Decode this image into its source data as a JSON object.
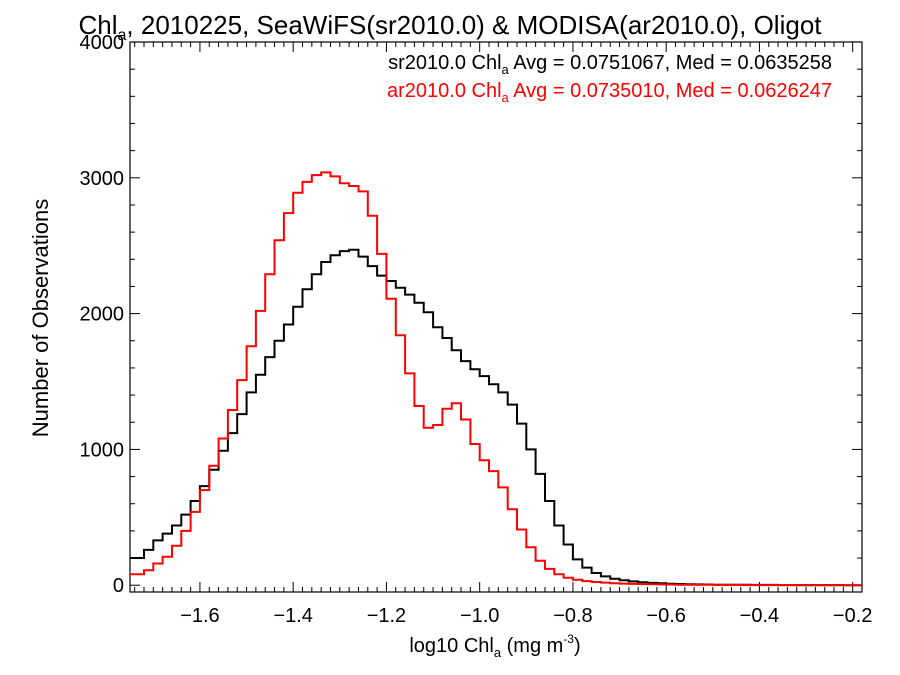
{
  "chart_data": {
    "type": "line",
    "title": {
      "pre": "Chl",
      "sub": "a",
      "post": ", 2010225, SeaWiFS(sr2010.0) & MODISA(ar2010.0), Oligot"
    },
    "xlabel": {
      "pre": "log10 Chl",
      "sub": "a",
      "mid": " (mg m",
      "sup": "-3",
      "post": ")"
    },
    "ylabel": "Number of Observations",
    "xlim": [
      -1.75,
      -0.18
    ],
    "ylim": [
      -50,
      4000
    ],
    "x_ticks": [
      -1.6,
      -1.4,
      -1.2,
      -1.0,
      -0.8,
      -0.6,
      -0.4,
      -0.2
    ],
    "x_tick_labels": [
      "−1.6",
      "−1.4",
      "−1.2",
      "−1.0",
      "−0.8",
      "−0.6",
      "−0.4",
      "−0.2"
    ],
    "y_ticks": [
      0,
      1000,
      2000,
      3000,
      4000
    ],
    "y_tick_labels": [
      "0",
      "1000",
      "2000",
      "3000",
      "4000"
    ],
    "grid": false,
    "legend_placement": "top-right",
    "series": [
      {
        "name": "sr2010.0",
        "color": "#000000",
        "label": {
          "pre": "sr2010.0 Chl",
          "sub": "a",
          "post": " Avg = 0.0751067, Med = 0.0635258"
        },
        "step": true,
        "x": [
          -1.75,
          -1.72,
          -1.7,
          -1.68,
          -1.66,
          -1.64,
          -1.62,
          -1.6,
          -1.58,
          -1.56,
          -1.54,
          -1.52,
          -1.5,
          -1.48,
          -1.46,
          -1.44,
          -1.42,
          -1.4,
          -1.38,
          -1.36,
          -1.34,
          -1.32,
          -1.3,
          -1.28,
          -1.26,
          -1.24,
          -1.22,
          -1.2,
          -1.18,
          -1.16,
          -1.14,
          -1.12,
          -1.1,
          -1.08,
          -1.06,
          -1.04,
          -1.02,
          -1.0,
          -0.98,
          -0.96,
          -0.94,
          -0.92,
          -0.9,
          -0.88,
          -0.86,
          -0.84,
          -0.82,
          -0.8,
          -0.78,
          -0.76,
          -0.74,
          -0.72,
          -0.7,
          -0.68,
          -0.66,
          -0.64,
          -0.62,
          -0.6,
          -0.58,
          -0.56,
          -0.54,
          -0.52,
          -0.5,
          -0.48,
          -0.46,
          -0.44,
          -0.42,
          -0.4,
          -0.38,
          -0.36,
          -0.34,
          -0.32,
          -0.3,
          -0.28,
          -0.26,
          -0.24,
          -0.22,
          -0.2,
          -0.18
        ],
        "y": [
          200,
          260,
          330,
          380,
          440,
          520,
          620,
          730,
          850,
          990,
          1120,
          1260,
          1420,
          1550,
          1680,
          1800,
          1920,
          2050,
          2180,
          2290,
          2380,
          2430,
          2460,
          2470,
          2420,
          2350,
          2280,
          2240,
          2190,
          2140,
          2080,
          2010,
          1900,
          1820,
          1730,
          1650,
          1590,
          1540,
          1480,
          1420,
          1330,
          1190,
          1000,
          820,
          620,
          440,
          300,
          190,
          130,
          90,
          65,
          48,
          36,
          28,
          22,
          17,
          14,
          11,
          9,
          7,
          6,
          5,
          4,
          4,
          3,
          3,
          2,
          2,
          2,
          1,
          1,
          1,
          1,
          1,
          1,
          1,
          0,
          0,
          0
        ]
      },
      {
        "name": "ar2010.0",
        "color": "#ff0000",
        "label": {
          "pre": "ar2010.0 Chl",
          "sub": "a",
          "post": " Avg = 0.0735010, Med = 0.0626247"
        },
        "step": true,
        "x": [
          -1.75,
          -1.72,
          -1.7,
          -1.68,
          -1.66,
          -1.64,
          -1.62,
          -1.6,
          -1.58,
          -1.56,
          -1.54,
          -1.52,
          -1.5,
          -1.48,
          -1.46,
          -1.44,
          -1.42,
          -1.4,
          -1.38,
          -1.36,
          -1.34,
          -1.32,
          -1.3,
          -1.28,
          -1.26,
          -1.24,
          -1.22,
          -1.2,
          -1.18,
          -1.16,
          -1.14,
          -1.12,
          -1.1,
          -1.08,
          -1.06,
          -1.04,
          -1.02,
          -1.0,
          -0.98,
          -0.96,
          -0.94,
          -0.92,
          -0.9,
          -0.88,
          -0.86,
          -0.84,
          -0.82,
          -0.8,
          -0.78,
          -0.76,
          -0.74,
          -0.72,
          -0.7,
          -0.68,
          -0.66,
          -0.64,
          -0.62,
          -0.6,
          -0.58,
          -0.56,
          -0.54,
          -0.52,
          -0.5,
          -0.48,
          -0.46,
          -0.44,
          -0.42,
          -0.4,
          -0.38,
          -0.36,
          -0.34,
          -0.32,
          -0.3,
          -0.28,
          -0.26,
          -0.24,
          -0.22,
          -0.2,
          -0.18
        ],
        "y": [
          80,
          110,
          160,
          210,
          290,
          400,
          540,
          700,
          880,
          1080,
          1290,
          1510,
          1760,
          2020,
          2290,
          2540,
          2740,
          2890,
          2970,
          3020,
          3040,
          3010,
          2960,
          2940,
          2900,
          2720,
          2440,
          2110,
          1840,
          1560,
          1320,
          1160,
          1180,
          1300,
          1340,
          1220,
          1040,
          920,
          840,
          720,
          560,
          410,
          280,
          180,
          120,
          80,
          55,
          40,
          30,
          24,
          19,
          15,
          12,
          10,
          8,
          7,
          6,
          5,
          4,
          4,
          3,
          3,
          2,
          2,
          2,
          1,
          1,
          1,
          1,
          1,
          1,
          0,
          0,
          0,
          0,
          0,
          0,
          0,
          0
        ]
      }
    ]
  }
}
